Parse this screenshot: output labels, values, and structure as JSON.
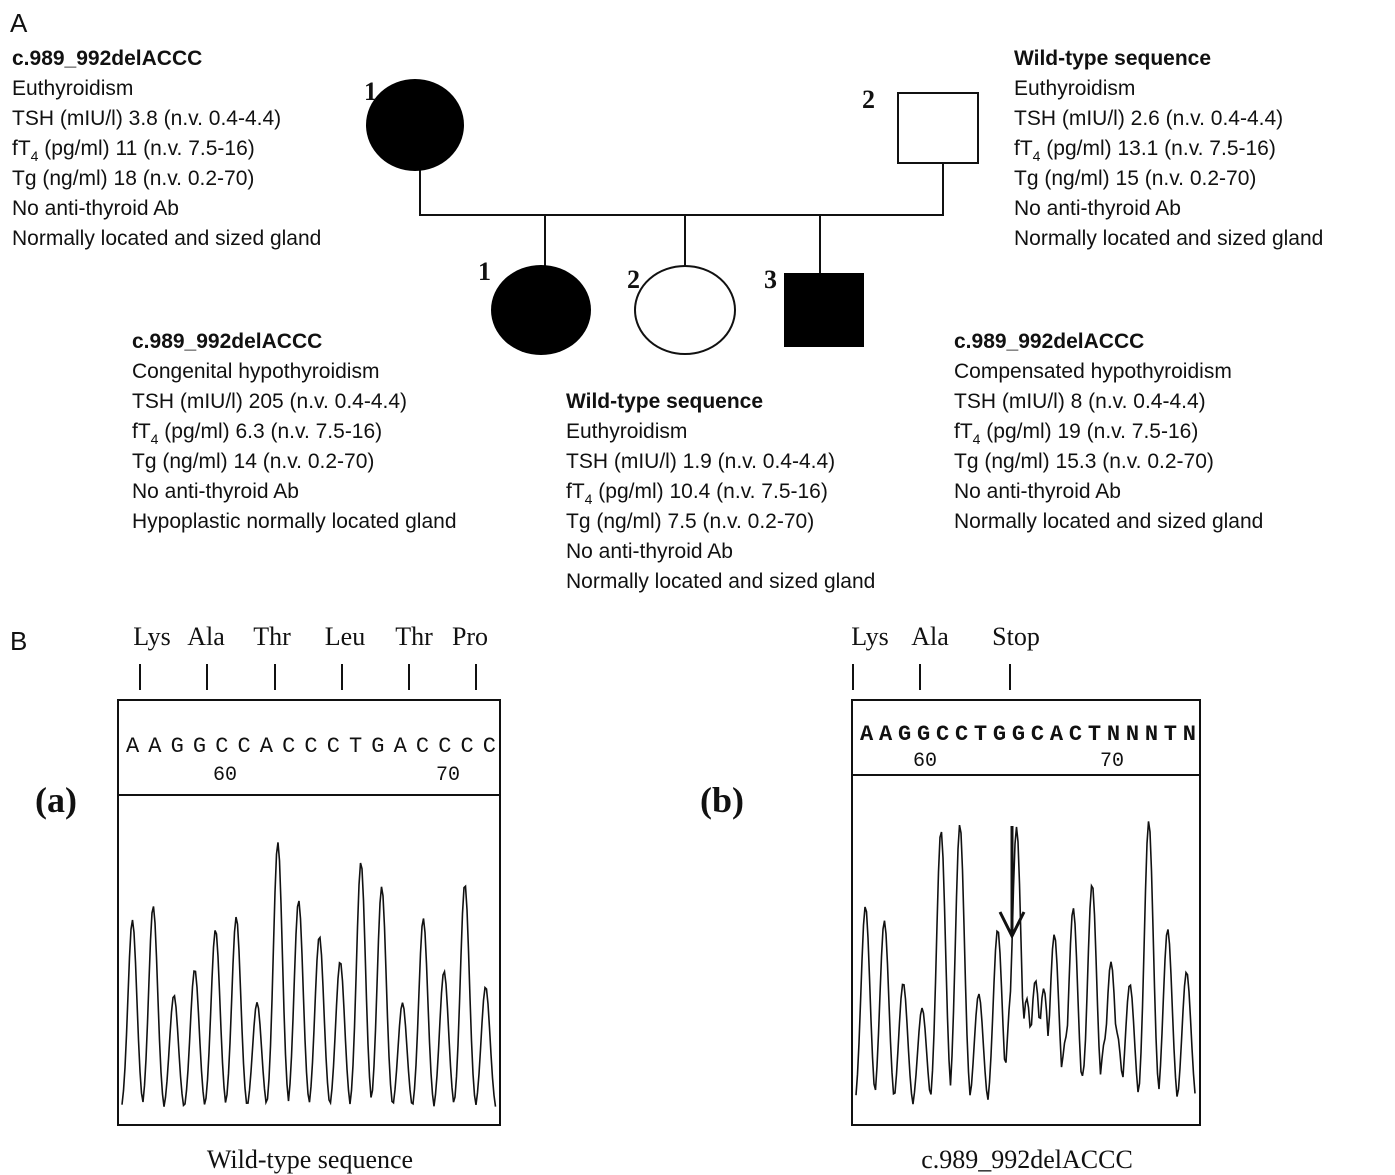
{
  "panel_a": {
    "label": "A",
    "individuals": [
      {
        "number": "1",
        "genotype": "c.989_992delACCC",
        "lines": [
          "Euthyroidism",
          "TSH (mIU/l) 3.8 (n.v. 0.4-4.4)",
          {
            "main": "fT",
            "sub": "4",
            "rest": " (pg/ml) 11 (n.v. 7.5-16)"
          },
          "Tg (ng/ml) 18 (n.v. 0.2-70)",
          "No anti-thyroid Ab",
          "Normally located and sized gland"
        ]
      },
      {
        "number": "2",
        "genotype": "Wild-type sequence",
        "lines": [
          "Euthyroidism",
          "TSH (mIU/l) 2.6 (n.v. 0.4-4.4)",
          {
            "main": "fT",
            "sub": "4",
            "rest": " (pg/ml) 13.1 (n.v. 7.5-16)"
          },
          "Tg (ng/ml) 15 (n.v. 0.2-70)",
          "No anti-thyroid Ab",
          "Normally located and sized gland"
        ]
      },
      {
        "number": "1",
        "genotype": "c.989_992delACCC",
        "lines": [
          "Congenital hypothyroidism",
          "TSH (mIU/l) 205 (n.v. 0.4-4.4)",
          {
            "main": "fT",
            "sub": "4",
            "rest": " (pg/ml) 6.3 (n.v. 7.5-16)"
          },
          "Tg (ng/ml) 14  (n.v. 0.2-70)",
          "No anti-thyroid Ab",
          "Hypoplastic normally located gland"
        ]
      },
      {
        "number": "2",
        "genotype": "Wild-type sequence",
        "lines": [
          "Euthyroidism",
          "TSH (mIU/l) 1.9 (n.v. 0.4-4.4)",
          {
            "main": "fT",
            "sub": "4",
            "rest": " (pg/ml) 10.4 (n.v. 7.5-16)"
          },
          "Tg (ng/ml) 7.5 (n.v. 0.2-70)",
          "No anti-thyroid Ab",
          "Normally located and sized gland"
        ]
      },
      {
        "number": "3",
        "genotype": "c.989_992delACCC",
        "lines": [
          "Compensated hypothyroidism",
          "TSH (mIU/l) 8 (n.v. 0.4-4.4)",
          {
            "main": "fT",
            "sub": "4",
            "rest": " (pg/ml) 19 (n.v. 7.5-16)"
          },
          "Tg (ng/ml) 15.3 (n.v. 0.2-70)",
          "No anti-thyroid Ab",
          "Normally located and sized gland"
        ]
      }
    ]
  },
  "panel_b": {
    "label": "B",
    "traces": [
      {
        "tag": "(a)",
        "amino_acids": [
          "Lys",
          "Ala",
          "Thr",
          "Leu",
          "Thr",
          "Pro"
        ],
        "bases": "AAGGCCACCCTGACCCC",
        "positions": [
          "60",
          "70"
        ],
        "caption": "Wild-type sequence"
      },
      {
        "tag": "(b)",
        "amino_acids": [
          "Lys",
          "Ala",
          "Stop"
        ],
        "bases": "AAGGCCTGGCACTNNNTN",
        "positions": [
          "60",
          "70"
        ],
        "caption": "c.989_992delACCC"
      }
    ]
  }
}
